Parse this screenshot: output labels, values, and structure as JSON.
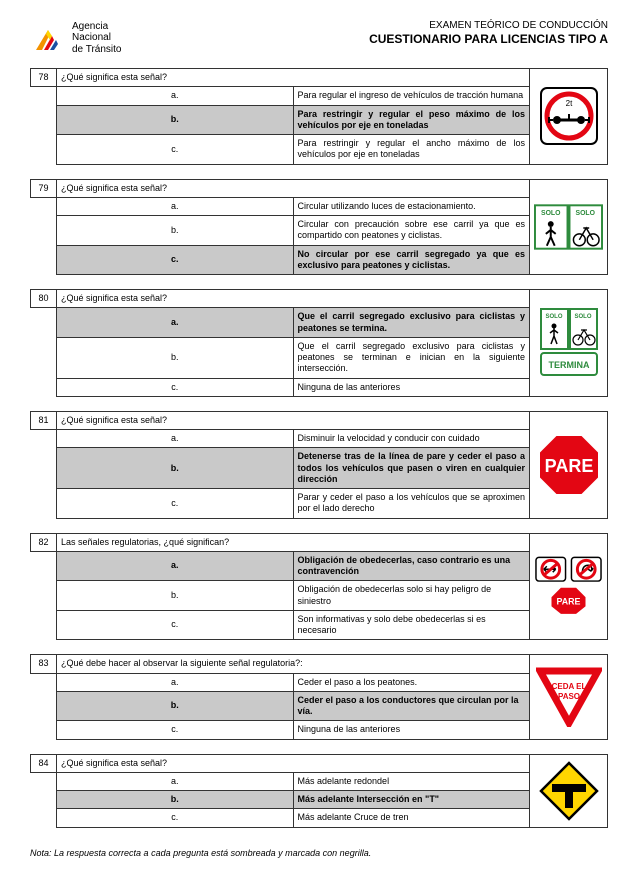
{
  "header": {
    "agency_line1": "Agencia",
    "agency_line2": "Nacional",
    "agency_line3": "de Tránsito",
    "title_line1": "EXAMEN TEÓRICO DE CONDUCCIÓN",
    "title_line2": "CUESTIONARIO PARA LICENCIAS TIPO A"
  },
  "footnote": "Nota: La respuesta correcta a cada pregunta está sombreada y marcada con negrilla.",
  "questions": [
    {
      "num": "78",
      "q": "¿Qué significa esta señal?",
      "opts": [
        {
          "l": "a.",
          "t": "Para regular el ingreso de vehículos de tracción humana",
          "c": false
        },
        {
          "l": "b.",
          "t": "Para restringir y regular el peso máximo de los vehículos por eje en toneladas",
          "c": true
        },
        {
          "l": "c.",
          "t": "Para restringir y regular el ancho máximo de los vehículos por eje en toneladas",
          "c": false
        }
      ],
      "sign": "weight"
    },
    {
      "num": "79",
      "q": "¿Qué significa esta señal?",
      "opts": [
        {
          "l": "a.",
          "t": "Circular utilizando luces de estacionamiento.",
          "c": false
        },
        {
          "l": "b.",
          "t": "Circular con precaución sobre ese carril ya que es compartido con peatones y ciclistas.",
          "c": false
        },
        {
          "l": "c.",
          "t": "No circular por ese carril segregado ya que es exclusivo para peatones y ciclistas.",
          "c": true
        }
      ],
      "sign": "solo"
    },
    {
      "num": "80",
      "q": "¿Qué significa esta señal?",
      "opts": [
        {
          "l": "a.",
          "t": "Que el carril segregado  exclusivo para ciclistas y peatones se termina.",
          "c": true
        },
        {
          "l": "b.",
          "t": "Que el carril segregado  exclusivo para ciclistas y peatones se terminan e inician en la siguiente intersección.",
          "c": false
        },
        {
          "l": "c.",
          "t": "Ninguna de las anteriores",
          "c": false
        }
      ],
      "sign": "termina"
    },
    {
      "num": "81",
      "q": "¿Qué significa esta señal?",
      "opts": [
        {
          "l": "a.",
          "t": "Disminuir la velocidad y conducir con cuidado",
          "c": false
        },
        {
          "l": "b.",
          "t": "Detenerse tras de la línea de pare y ceder el paso a todos los vehículos que pasen o viren en cualquier dirección",
          "c": true
        },
        {
          "l": "c.",
          "t": "Parar y ceder el paso a los vehículos que se aproximen por el lado derecho",
          "c": false
        }
      ],
      "sign": "pare"
    },
    {
      "num": "82",
      "q": "Las señales regulatorias, ¿qué significan?",
      "opts": [
        {
          "l": "a.",
          "t": "Obligación de obedecerlas, caso contrario es una contravención",
          "c": true
        },
        {
          "l": "b.",
          "t": "Obligación de obedecerlas solo si hay peligro de siniestro",
          "c": false
        },
        {
          "l": "c.",
          "t": "Son informativas y solo debe obedecerlas si es necesario",
          "c": false
        }
      ],
      "sign": "regul"
    },
    {
      "num": "83",
      "q": "¿Qué debe hacer al observar la siguiente señal regulatoria?:",
      "opts": [
        {
          "l": "a.",
          "t": "Ceder el paso a los peatones.",
          "c": false
        },
        {
          "l": "b.",
          "t": "Ceder el paso a los conductores que circulan por la vía.",
          "c": true
        },
        {
          "l": "c.",
          "t": "Ninguna de las anteriores",
          "c": false
        }
      ],
      "sign": "ceda"
    },
    {
      "num": "84",
      "q": "¿Qué significa esta señal?",
      "opts": [
        {
          "l": "a.",
          "t": "Más adelante redondel",
          "c": false
        },
        {
          "l": "b.",
          "t": "Más adelante Intersección en \"T\"",
          "c": true
        },
        {
          "l": "c.",
          "t": "Más adelante Cruce de tren",
          "c": false
        }
      ],
      "sign": "tjunc"
    }
  ],
  "colors": {
    "highlight": "#c9c9c9",
    "border": "#333333",
    "red": "#e30613",
    "green": "#2e8b3d",
    "yellow": "#ffd600",
    "blue": "#1a4fa3",
    "orange": "#f39200"
  }
}
